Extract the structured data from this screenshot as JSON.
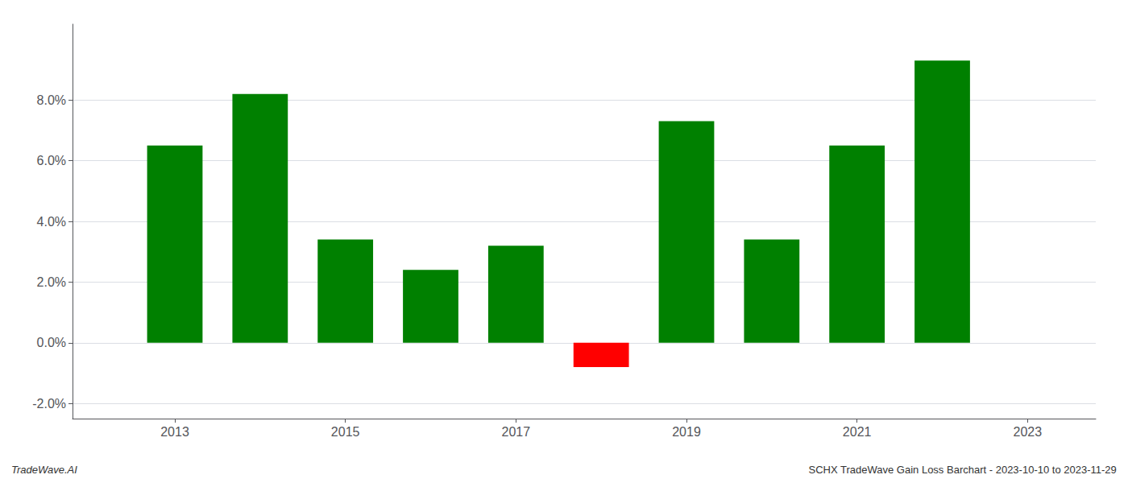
{
  "chart_data": {
    "type": "bar",
    "x": [
      2013,
      2014,
      2015,
      2016,
      2017,
      2018,
      2019,
      2020,
      2021,
      2022
    ],
    "values": [
      0.065,
      0.082,
      0.034,
      0.024,
      0.032,
      -0.008,
      0.073,
      0.034,
      0.065,
      0.093
    ],
    "colors": [
      "#008000",
      "#008000",
      "#008000",
      "#008000",
      "#008000",
      "#ff0000",
      "#008000",
      "#008000",
      "#008000",
      "#008000"
    ],
    "xlim": [
      2011.8,
      2023.8
    ],
    "xticks": [
      2013,
      2015,
      2017,
      2019,
      2021,
      2023
    ],
    "ylim": [
      -0.025,
      0.105
    ],
    "yticks": [
      {
        "value": -0.02,
        "label": "-2.0%"
      },
      {
        "value": 0.0,
        "label": "0.0%"
      },
      {
        "value": 0.02,
        "label": "2.0%"
      },
      {
        "value": 0.04,
        "label": "4.0%"
      },
      {
        "value": 0.06,
        "label": "6.0%"
      },
      {
        "value": 0.08,
        "label": "8.0%"
      }
    ],
    "grid": "y",
    "annotations": [
      "TradeWave.AI",
      "SCHX TradeWave Gain Loss Barchart - 2023-10-10 to 2023-11-29"
    ]
  }
}
